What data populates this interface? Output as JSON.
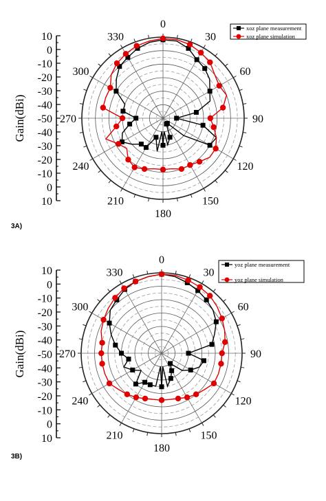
{
  "chart_data": [
    {
      "panel_label": "3A)",
      "type": "polar-line",
      "ylabel": "Gain(dBi)",
      "r_tick_labels": [
        "10",
        "0",
        "-10",
        "-20",
        "-30",
        "-40",
        "-50",
        "-40",
        "-30",
        "-20",
        "-10",
        "0",
        "10"
      ],
      "angle_tick_labels": [
        "0",
        "30",
        "60",
        "90",
        "120",
        "150",
        "180",
        "210",
        "240",
        "270",
        "300",
        "330"
      ],
      "rlim": [
        -50,
        10
      ],
      "grid": true,
      "legend_position": "top-right",
      "series": [
        {
          "name": "xoz plane measurement",
          "color": "#000000",
          "marker": "square",
          "angles": [
            0,
            10,
            20,
            30,
            40,
            50,
            60,
            70,
            80,
            90,
            100,
            110,
            120,
            130,
            140,
            150,
            160,
            170,
            175,
            180,
            185,
            190,
            200,
            210,
            220,
            230,
            240,
            250,
            260,
            270,
            280,
            290,
            300,
            310,
            320,
            330,
            340,
            350
          ],
          "gain": [
            8,
            8,
            5,
            0,
            -2,
            -5,
            -10,
            -13,
            -25,
            -40,
            -20,
            -8,
            -10,
            -30,
            -45,
            -45,
            -35,
            -30,
            -40,
            -30,
            -40,
            -25,
            -35,
            -25,
            -25,
            -20,
            -15,
            -18,
            -25,
            -30,
            -20,
            -20,
            -10,
            -5,
            0,
            2,
            5,
            7
          ]
        },
        {
          "name": "xoz plane simulation",
          "color": "#e00000",
          "marker": "circle",
          "angles": [
            0,
            10,
            20,
            30,
            40,
            50,
            60,
            70,
            80,
            90,
            100,
            110,
            120,
            130,
            140,
            150,
            160,
            170,
            180,
            190,
            200,
            210,
            220,
            230,
            240,
            250,
            260,
            270,
            280,
            290,
            300,
            310,
            320,
            330,
            340,
            350
          ],
          "gain": [
            9,
            9,
            8,
            6,
            4,
            0,
            -2,
            0,
            -5,
            -15,
            -12,
            -8,
            -5,
            -5,
            -8,
            -10,
            -10,
            -12,
            -12,
            -12,
            -10,
            -8,
            -10,
            -15,
            -12,
            -5,
            -15,
            -20,
            -5,
            -5,
            -5,
            0,
            3,
            5,
            7,
            8
          ]
        }
      ]
    },
    {
      "panel_label": "3B)",
      "type": "polar-line",
      "ylabel": "Gain(dBi)",
      "r_tick_labels": [
        "10",
        "0",
        "-10",
        "-20",
        "-30",
        "-40",
        "-50",
        "-40",
        "-30",
        "-20",
        "-10",
        "0",
        "10"
      ],
      "angle_tick_labels": [
        "0",
        "30",
        "60",
        "90",
        "120",
        "150",
        "180",
        "210",
        "240",
        "270",
        "300",
        "330"
      ],
      "rlim": [
        -50,
        10
      ],
      "grid": true,
      "legend_position": "top-right",
      "series": [
        {
          "name": "yoz plane measurement",
          "color": "#000000",
          "marker": "square",
          "angles": [
            0,
            10,
            20,
            30,
            40,
            50,
            60,
            70,
            80,
            90,
            100,
            110,
            120,
            130,
            140,
            150,
            160,
            170,
            175,
            180,
            185,
            190,
            200,
            210,
            220,
            230,
            240,
            250,
            260,
            270,
            280,
            290,
            300,
            310,
            320,
            330,
            340,
            350
          ],
          "gain": [
            9,
            8,
            6,
            4,
            2,
            0,
            -3,
            -8,
            -12,
            -30,
            -18,
            -20,
            -25,
            -30,
            -40,
            -35,
            -30,
            -25,
            -40,
            -25,
            -40,
            -25,
            -25,
            -25,
            -20,
            -30,
            -25,
            -20,
            -25,
            -20,
            -15,
            -10,
            -5,
            0,
            2,
            5,
            7,
            8
          ]
        },
        {
          "name": "yoz plane simulation",
          "color": "#e00000",
          "marker": "circle",
          "angles": [
            0,
            10,
            20,
            30,
            40,
            50,
            60,
            70,
            80,
            90,
            100,
            110,
            120,
            130,
            140,
            150,
            160,
            170,
            180,
            190,
            200,
            210,
            220,
            230,
            240,
            250,
            260,
            270,
            280,
            290,
            300,
            310,
            320,
            330,
            340,
            350
          ],
          "gain": [
            9,
            9,
            8,
            7,
            6,
            4,
            2,
            0,
            -2,
            -5,
            -5,
            -5,
            -5,
            -8,
            -10,
            -12,
            -14,
            -15,
            -15,
            -15,
            -14,
            -12,
            -10,
            -8,
            -5,
            -5,
            -5,
            -5,
            -5,
            -2,
            0,
            2,
            4,
            6,
            7,
            8
          ]
        }
      ]
    }
  ]
}
